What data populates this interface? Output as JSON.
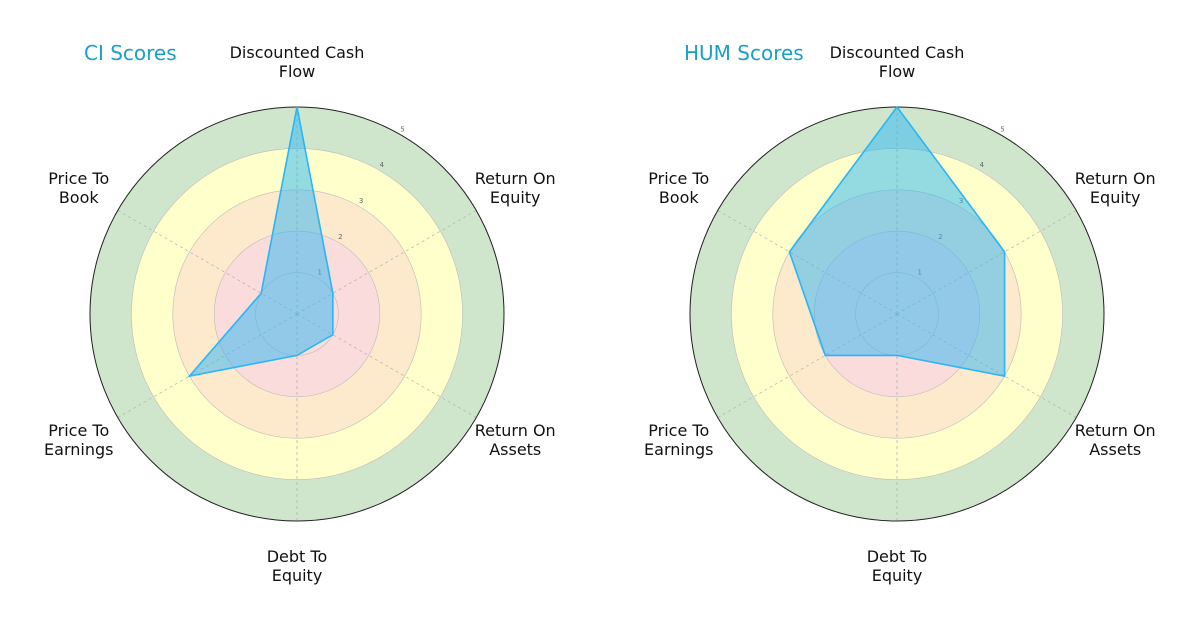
{
  "chart_data": [
    {
      "type": "radar",
      "title": "CI Scores",
      "categories": [
        "Discounted Cash\nFlow",
        "Return On\nEquity",
        "Return On\nAssets",
        "Debt To\nEquity",
        "Price To\nEarnings",
        "Price To\nBook"
      ],
      "values": [
        5,
        1,
        1,
        1,
        3,
        1
      ],
      "color": "#29b6f6",
      "rlim": [
        0,
        5
      ],
      "rticks": [
        1,
        2,
        3,
        4,
        5
      ],
      "zones": [
        {
          "to": 2,
          "color": "#fadcdc"
        },
        {
          "to": 3,
          "color": "#fde9cc"
        },
        {
          "to": 4,
          "color": "#ffffcc"
        },
        {
          "to": 5,
          "color": "#d0e6cc"
        }
      ]
    },
    {
      "type": "radar",
      "title": "HUM Scores",
      "categories": [
        "Discounted Cash\nFlow",
        "Return On\nEquity",
        "Return On\nAssets",
        "Debt To\nEquity",
        "Price To\nEarnings",
        "Price To\nBook"
      ],
      "values": [
        5,
        3,
        3,
        1,
        2,
        3
      ],
      "color": "#29b6f6",
      "rlim": [
        0,
        5
      ],
      "rticks": [
        1,
        2,
        3,
        4,
        5
      ],
      "zones": [
        {
          "to": 2,
          "color": "#fadcdc"
        },
        {
          "to": 3,
          "color": "#fde9cc"
        },
        {
          "to": 4,
          "color": "#ffffcc"
        },
        {
          "to": 5,
          "color": "#d0e6cc"
        }
      ]
    }
  ]
}
